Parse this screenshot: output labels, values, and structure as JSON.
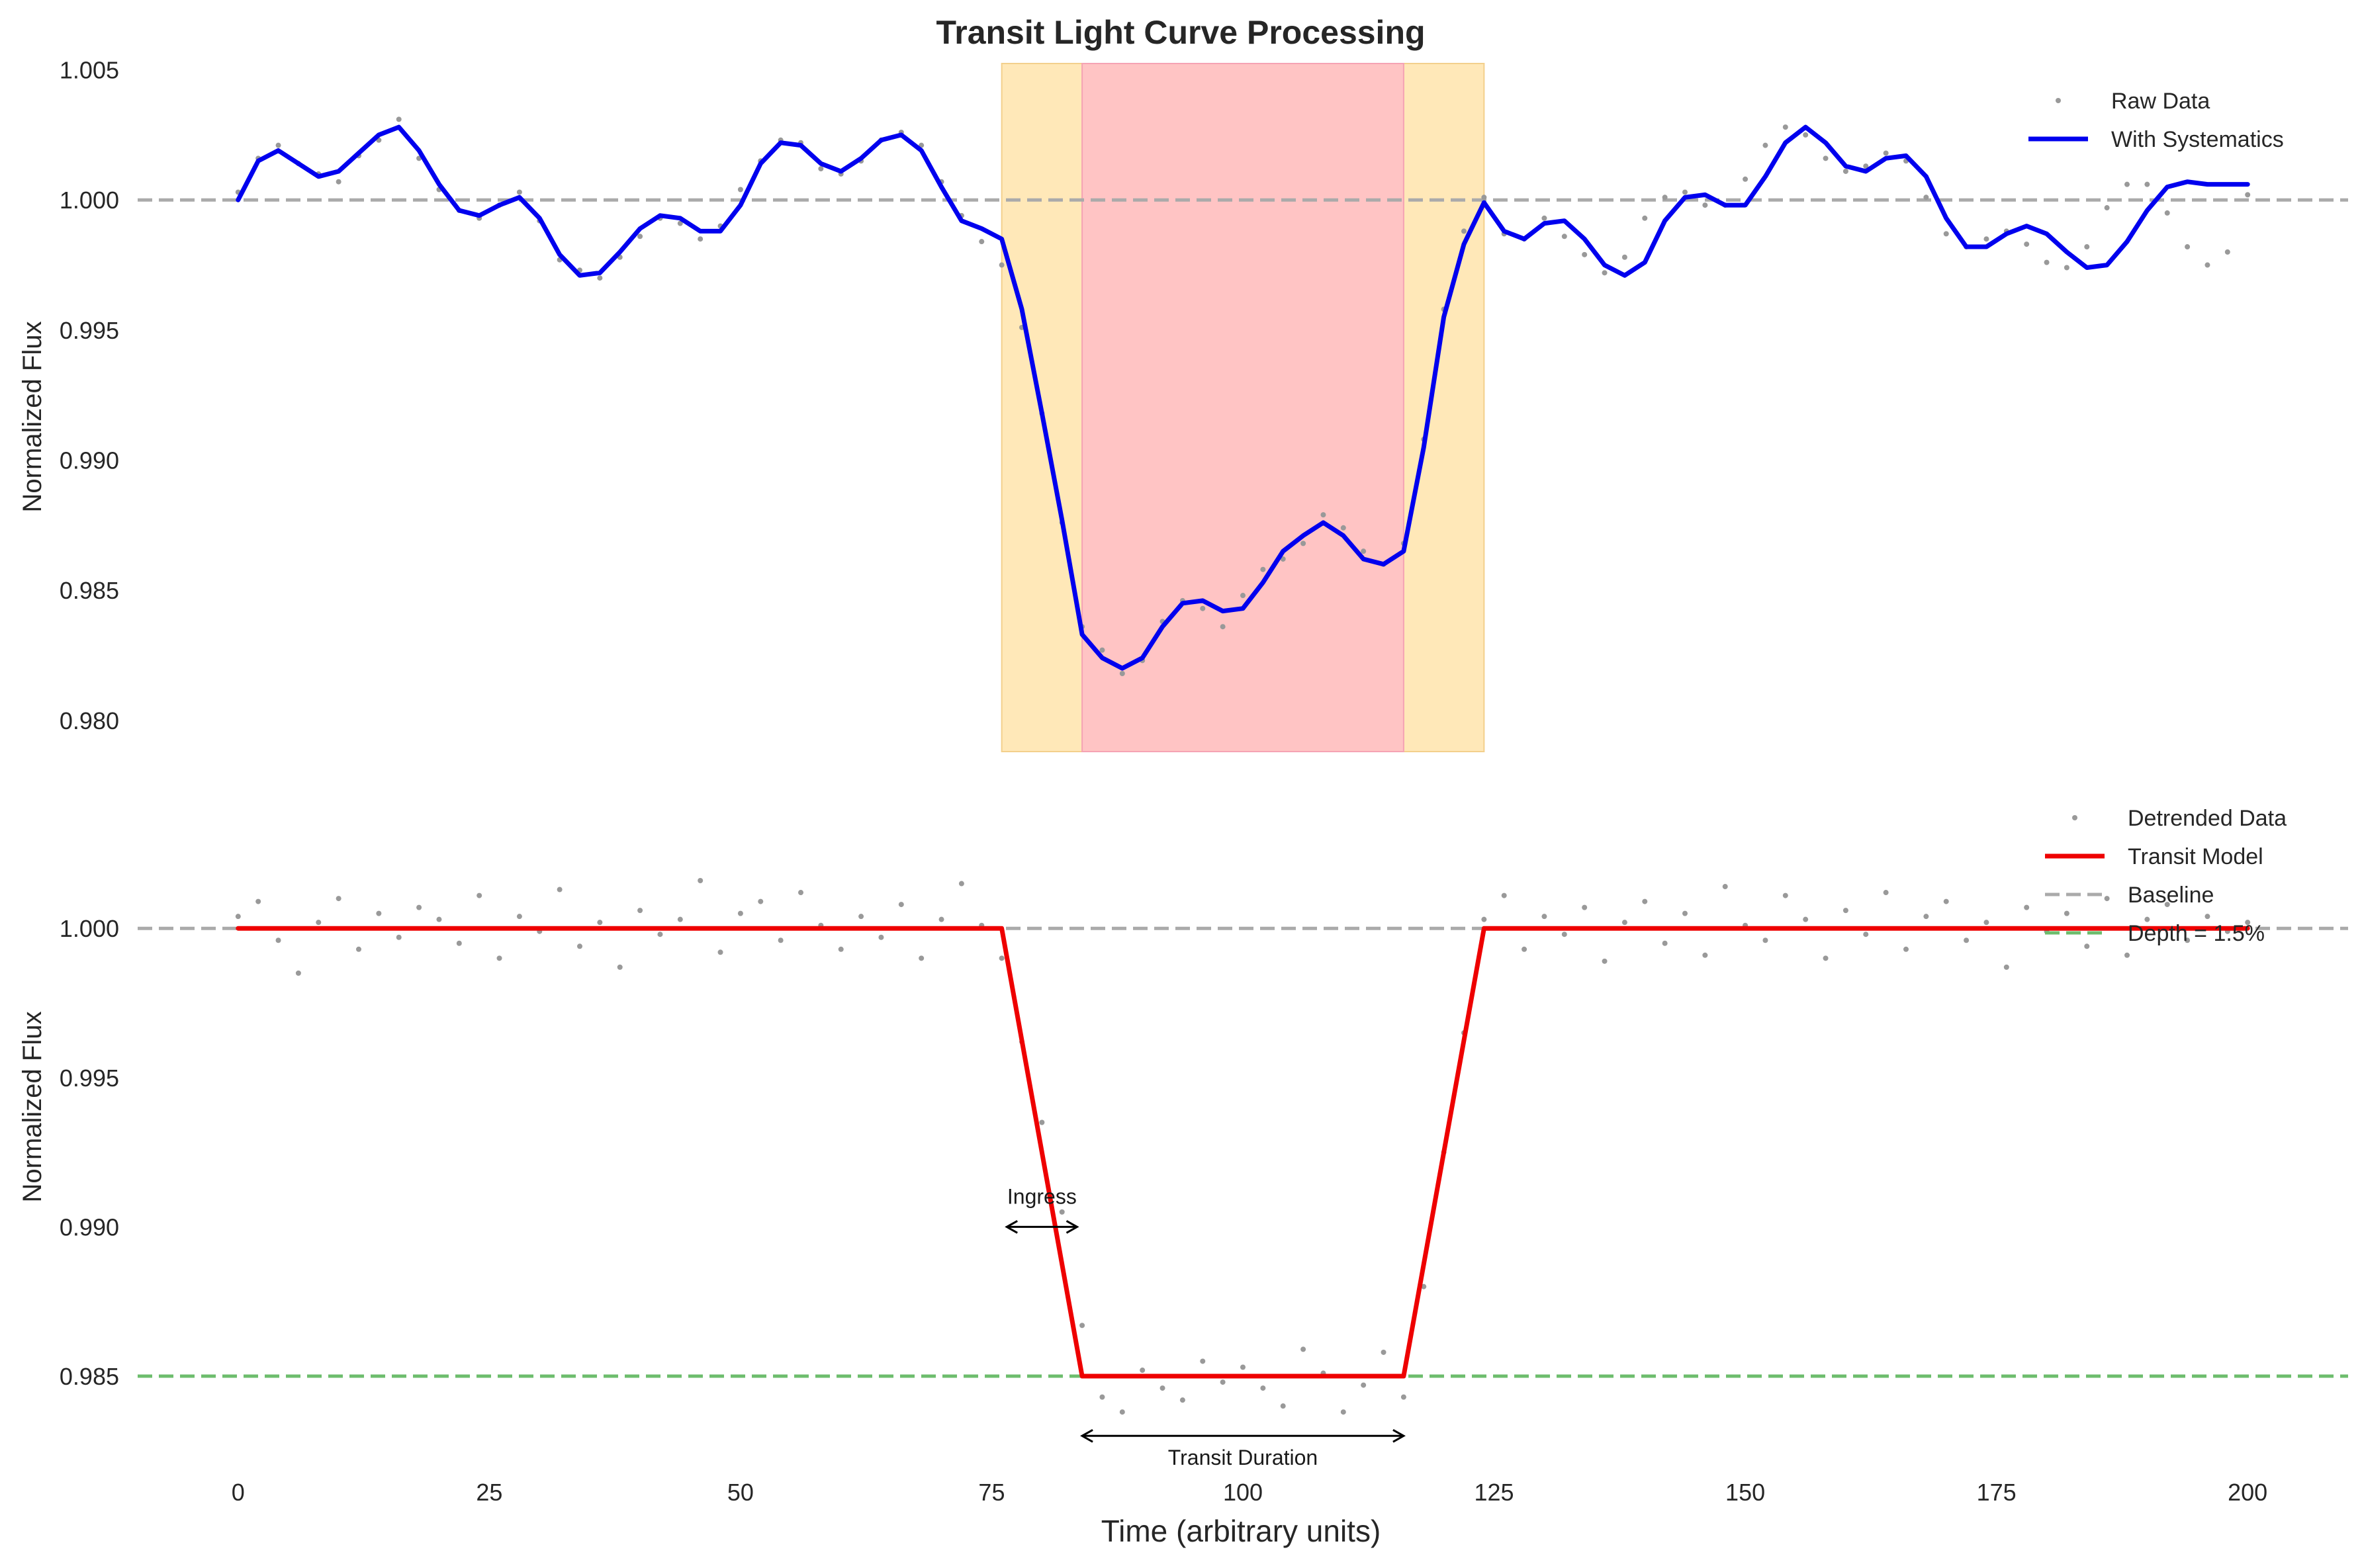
{
  "chart_data": [
    {
      "type": "line",
      "title": "Transit Light Curve Processing",
      "ylabel": "Normalized Flux",
      "xlabel": "",
      "xlim": [
        -10,
        210
      ],
      "ylim": [
        0.9788,
        1.0056
      ],
      "x_ticks": [
        0,
        25,
        50,
        75,
        100,
        125,
        150,
        175,
        200
      ],
      "y_ticks": [
        0.98,
        0.985,
        0.99,
        0.995,
        1.0,
        1.005
      ],
      "y_tick_labels": [
        "0.980",
        "0.985",
        "0.990",
        "0.995",
        "1.000",
        "1.005"
      ],
      "grid": false,
      "legend_position": "upper right",
      "baseline": 1.0,
      "shaded_regions": [
        {
          "name": "ingress/egress",
          "x0": 76,
          "x1": 124,
          "color": "#ffe8b8"
        },
        {
          "name": "full transit",
          "x0": 84,
          "x1": 116,
          "color": "#ffc4c4"
        }
      ],
      "series": [
        {
          "name": "Raw Data",
          "style": "points",
          "color": "#999999",
          "x": [
            0,
            2,
            4,
            6,
            8,
            10,
            12,
            14,
            16,
            18,
            20,
            22,
            24,
            26,
            28,
            30,
            32,
            34,
            36,
            38,
            40,
            42,
            44,
            46,
            48,
            50,
            52,
            54,
            56,
            58,
            60,
            62,
            64,
            66,
            68,
            70,
            72,
            74,
            76,
            78,
            80,
            82,
            84,
            86,
            88,
            90,
            92,
            94,
            96,
            98,
            100,
            102,
            104,
            106,
            108,
            110,
            112,
            114,
            116,
            118,
            120,
            122,
            124,
            126,
            128,
            130,
            132,
            134,
            136,
            138,
            140,
            142,
            144,
            146,
            148,
            150,
            152,
            154,
            156,
            158,
            160,
            162,
            164,
            166,
            168,
            170,
            172,
            174,
            176,
            178,
            180,
            182,
            184,
            186,
            188,
            190,
            192,
            194,
            196,
            198,
            200
          ],
          "y": [
            1.0003,
            1.0016,
            1.0021,
            1.0014,
            1.001,
            1.0007,
            1.0017,
            1.0023,
            1.0031,
            1.0016,
            1.0004,
            0.9996,
            0.9993,
            0.9998,
            1.0003,
            0.9992,
            0.9977,
            0.9973,
            0.997,
            0.9978,
            0.9986,
            0.9993,
            0.9991,
            0.9985,
            0.999,
            1.0004,
            1.0015,
            1.0023,
            1.0022,
            1.0012,
            1.001,
            1.0015,
            1.0023,
            1.0026,
            1.0021,
            1.0007,
            0.9994,
            0.9984,
            0.9975,
            0.9951,
            0.9918,
            0.9876,
            0.9836,
            0.9827,
            0.9818,
            0.9823,
            0.9838,
            0.9846,
            0.9843,
            0.9836,
            0.9848,
            0.9858,
            0.9862,
            0.9868,
            0.9879,
            0.9874,
            0.9865,
            0.986,
            0.9868,
            0.9908,
            0.9958,
            0.9988,
            1.0001,
            0.9987,
            0.9985,
            0.9993,
            0.9986,
            0.9979,
            0.9972,
            0.9978,
            0.9993,
            1.0001,
            1.0003,
            0.9998,
            0.9998,
            1.0008,
            1.0021,
            1.0028,
            1.0025,
            1.0016,
            1.0011,
            1.0013,
            1.0018,
            1.0015,
            1.0001,
            0.9987,
            0.9982,
            0.9985,
            0.9988,
            0.9983,
            0.9976,
            0.9974,
            0.9982,
            0.9997,
            1.0006,
            1.0006,
            0.9995,
            0.9982,
            0.9975,
            0.998,
            1.0002
          ]
        },
        {
          "name": "With Systematics",
          "style": "line",
          "color": "#0000ee",
          "x": [
            0,
            2,
            4,
            6,
            8,
            10,
            12,
            14,
            16,
            18,
            20,
            22,
            24,
            26,
            28,
            30,
            32,
            34,
            36,
            38,
            40,
            42,
            44,
            46,
            48,
            50,
            52,
            54,
            56,
            58,
            60,
            62,
            64,
            66,
            68,
            70,
            72,
            74,
            76,
            78,
            80,
            82,
            84,
            86,
            88,
            90,
            92,
            94,
            96,
            98,
            100,
            102,
            104,
            106,
            108,
            110,
            112,
            114,
            116,
            118,
            120,
            122,
            124,
            126,
            128,
            130,
            132,
            134,
            136,
            138,
            140,
            142,
            144,
            146,
            148,
            150,
            152,
            154,
            156,
            158,
            160,
            162,
            164,
            166,
            168,
            170,
            172,
            174,
            176,
            178,
            180,
            182,
            184,
            186,
            188,
            190,
            192,
            194,
            196,
            198,
            200
          ],
          "y": [
            1.0,
            1.0015,
            1.0019,
            1.0014,
            1.0009,
            1.0011,
            1.0018,
            1.0025,
            1.0028,
            1.0019,
            1.0006,
            0.9996,
            0.9994,
            0.9998,
            1.0001,
            0.9993,
            0.9979,
            0.9971,
            0.9972,
            0.998,
            0.9989,
            0.9994,
            0.9993,
            0.9988,
            0.9988,
            0.9998,
            1.0014,
            1.0022,
            1.0021,
            1.0014,
            1.0011,
            1.0016,
            1.0023,
            1.0025,
            1.0019,
            1.0005,
            0.9992,
            0.9989,
            0.9985,
            0.9958,
            0.9918,
            0.9877,
            0.9833,
            0.9824,
            0.982,
            0.9824,
            0.9836,
            0.9845,
            0.9846,
            0.9842,
            0.9843,
            0.9853,
            0.9865,
            0.9871,
            0.9876,
            0.9871,
            0.9862,
            0.986,
            0.9865,
            0.9905,
            0.9955,
            0.9983,
            0.9999,
            0.9988,
            0.9985,
            0.9991,
            0.9992,
            0.9985,
            0.9975,
            0.9971,
            0.9976,
            0.9992,
            1.0001,
            1.0002,
            0.9998,
            0.9998,
            1.0009,
            1.0022,
            1.0028,
            1.0022,
            1.0013,
            1.0011,
            1.0016,
            1.0017,
            1.0009,
            0.9993,
            0.9982,
            0.9982,
            0.9987,
            0.999,
            0.9987,
            0.998,
            0.9974,
            0.9975,
            0.9984,
            0.9996,
            1.0005,
            1.0007,
            1.0006,
            1.0006,
            1.0006
          ]
        }
      ]
    },
    {
      "type": "line",
      "title": "",
      "ylabel": "Normalized Flux",
      "xlabel": "Time (arbitrary units)",
      "xlim": [
        -10,
        210
      ],
      "ylim": [
        0.9813,
        1.0057
      ],
      "x_ticks": [
        0,
        25,
        50,
        75,
        100,
        125,
        150,
        175,
        200
      ],
      "x_tick_labels": [
        "0",
        "25",
        "50",
        "75",
        "100",
        "125",
        "150",
        "175",
        "200"
      ],
      "y_ticks": [
        0.985,
        0.99,
        0.995,
        1.0
      ],
      "y_tick_labels": [
        "0.985",
        "0.990",
        "0.995",
        "1.000"
      ],
      "grid": false,
      "legend_position": "upper right",
      "annotations": [
        {
          "text": "Ingress",
          "arrow_x": [
            76.5,
            83.5
          ],
          "arrow_y": 0.99,
          "text_x": 80,
          "text_y": 0.991
        },
        {
          "text": "Transit Duration",
          "arrow_x": [
            84,
            116
          ],
          "arrow_y": 0.983,
          "text_x": 100,
          "text_y": 0.98225
        }
      ],
      "series": [
        {
          "name": "Detrended Data",
          "style": "points",
          "color": "#999999",
          "x": [
            0,
            2,
            4,
            6,
            8,
            10,
            12,
            14,
            16,
            18,
            20,
            22,
            24,
            26,
            28,
            30,
            32,
            34,
            36,
            38,
            40,
            42,
            44,
            46,
            48,
            50,
            52,
            54,
            56,
            58,
            60,
            62,
            64,
            66,
            68,
            70,
            72,
            74,
            76,
            78,
            80,
            82,
            84,
            86,
            88,
            90,
            92,
            94,
            96,
            98,
            100,
            102,
            104,
            106,
            108,
            110,
            112,
            114,
            116,
            118,
            120,
            122,
            124,
            126,
            128,
            130,
            132,
            134,
            136,
            138,
            140,
            142,
            144,
            146,
            148,
            150,
            152,
            154,
            156,
            158,
            160,
            162,
            164,
            166,
            168,
            170,
            172,
            174,
            176,
            178,
            180,
            182,
            184,
            186,
            188,
            190,
            192,
            194,
            196,
            198,
            200
          ],
          "y": [
            1.0004,
            1.0009,
            0.9996,
            0.9985,
            1.0002,
            1.001,
            0.9993,
            1.0005,
            0.9997,
            1.0007,
            1.0003,
            0.9995,
            1.0011,
            0.999,
            1.0004,
            0.9999,
            1.0013,
            0.9994,
            1.0002,
            0.9987,
            1.0006,
            0.9998,
            1.0003,
            1.0016,
            0.9992,
            1.0005,
            1.0009,
            0.9996,
            1.0012,
            1.0001,
            0.9993,
            1.0004,
            0.9997,
            1.0008,
            0.999,
            1.0003,
            1.0015,
            1.0001,
            0.999,
            0.9962,
            0.9935,
            0.9905,
            0.9867,
            0.9843,
            0.9838,
            0.9852,
            0.9846,
            0.9842,
            0.9855,
            0.9848,
            0.9853,
            0.9846,
            0.984,
            0.9859,
            0.9851,
            0.9838,
            0.9847,
            0.9858,
            0.9843,
            0.988,
            0.9925,
            0.9965,
            1.0003,
            1.0011,
            0.9993,
            1.0004,
            0.9998,
            1.0007,
            0.9989,
            1.0002,
            1.0009,
            0.9995,
            1.0005,
            0.9991,
            1.0014,
            1.0001,
            0.9996,
            1.0011,
            1.0003,
            0.999,
            1.0006,
            0.9998,
            1.0012,
            0.9993,
            1.0004,
            1.0009,
            0.9996,
            1.0002,
            0.9987,
            1.0007,
            0.9999,
            1.0005,
            0.9994,
            1.001,
            0.9991,
            1.0003,
            1.0008,
            0.9996,
            1.0004,
            0.9999,
            1.0002
          ]
        },
        {
          "name": "Transit Model",
          "style": "line",
          "color": "#ee0000",
          "x": [
            0,
            76,
            84,
            116,
            124,
            200
          ],
          "y": [
            1.0,
            1.0,
            0.985,
            0.985,
            1.0,
            1.0
          ]
        },
        {
          "name": "Baseline",
          "style": "dashed",
          "color": "#aaaaaa",
          "y_const": 1.0
        },
        {
          "name": "Depth = 1.5%",
          "style": "dashed",
          "color": "#6dbd6d",
          "y_const": 0.985
        }
      ]
    }
  ]
}
